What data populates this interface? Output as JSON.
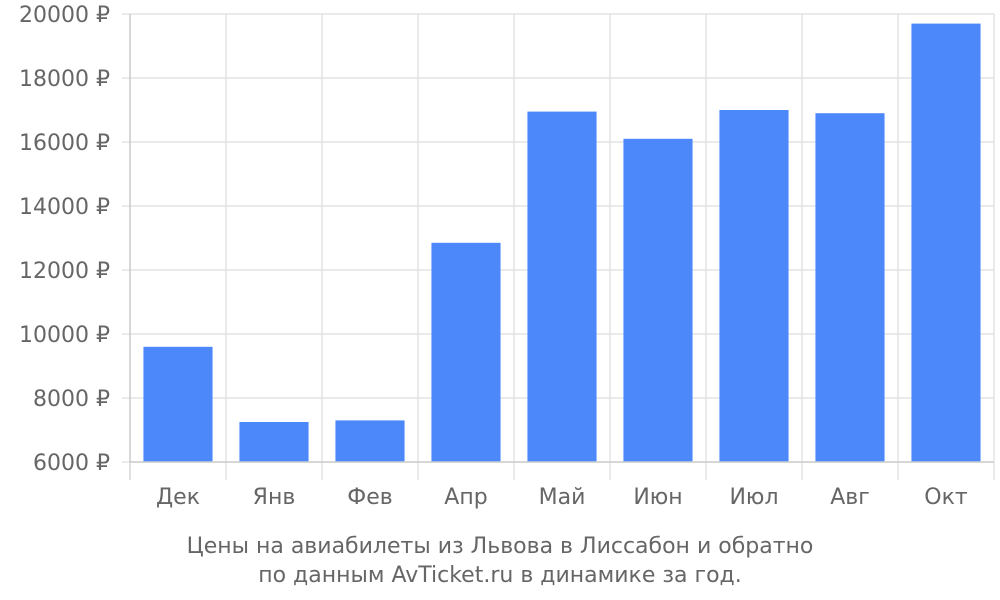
{
  "chart_data": {
    "type": "bar",
    "categories": [
      "Дек",
      "Янв",
      "Фев",
      "Апр",
      "Май",
      "Июн",
      "Июл",
      "Авг",
      "Окт"
    ],
    "values": [
      9600,
      7250,
      7300,
      12850,
      16950,
      16100,
      17000,
      16900,
      19700
    ],
    "ylim": [
      6000,
      20000
    ],
    "yticks": [
      6000,
      8000,
      10000,
      12000,
      14000,
      16000,
      18000,
      20000
    ],
    "ytick_suffix": " ₽",
    "grid": true,
    "bar_color": "#4d88fb",
    "caption_lines": [
      "Цены на авиабилеты из Львова в Лиссабон и обратно",
      "по данным AvTicket.ru в динамике за год."
    ]
  }
}
